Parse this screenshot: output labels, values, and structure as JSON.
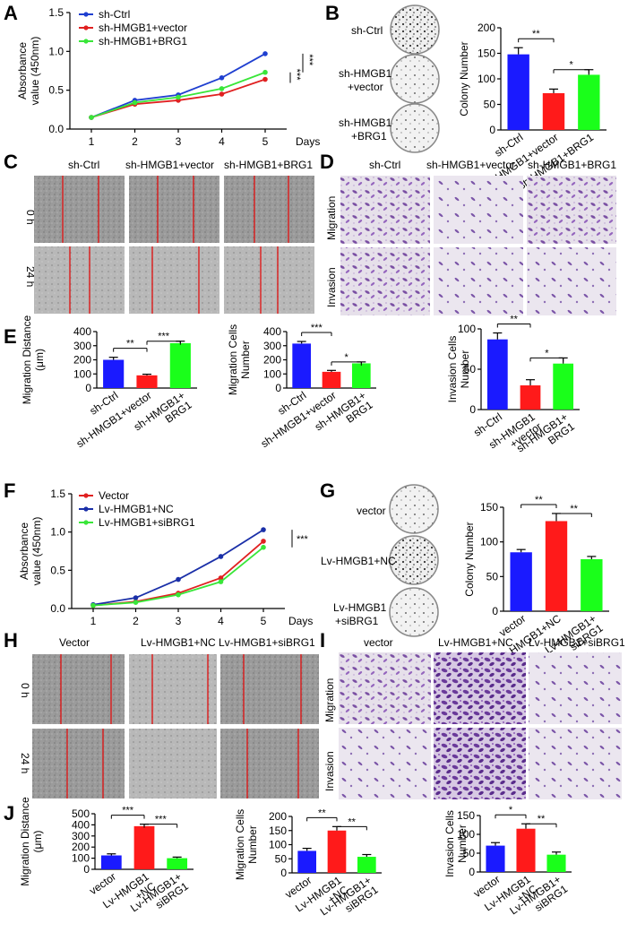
{
  "figure": {
    "panels": {
      "A": "A",
      "B": "B",
      "C": "C",
      "D": "D",
      "E": "E",
      "F": "F",
      "G": "G",
      "H": "H",
      "I": "I",
      "J": "J"
    },
    "days_label": "Days",
    "time_labels": [
      "0 h",
      "24 h"
    ],
    "row_labels": [
      "Migration",
      "Invasion"
    ],
    "top_conditions": [
      "sh-Ctrl",
      "sh-HMGB1+vector",
      "sh-HMGB1+BRG1"
    ],
    "bottom_conditions_H": [
      "Vector",
      "Lv-HMGB1+NC",
      "Lv-HMGB1+siBRG1"
    ],
    "bottom_conditions_I": [
      "vector",
      "Lv-HMGB1+NC",
      "Lv-HMGB1+siBRG1"
    ],
    "plate_labels_B": [
      "sh-Ctrl",
      "sh-HMGB1\n+vector",
      "sh-HMGB1\n+BRG1"
    ],
    "plate_labels_G": [
      "vector",
      "Lv-HMGB1+NC",
      "Lv-HMGB1\n+siBRG1"
    ]
  },
  "chart_data": [
    {
      "id": "A",
      "type": "line",
      "x": [
        1,
        2,
        3,
        4,
        5
      ],
      "xlabel": "Days",
      "ylabel": "Absorbance value (450nm)",
      "ylim": [
        0,
        1.5
      ],
      "yticks": [
        "0.0",
        "0.5",
        "1.0",
        "1.5"
      ],
      "series": [
        {
          "name": "sh-Ctrl",
          "color": "#1f3fd0",
          "values": [
            0.15,
            0.37,
            0.44,
            0.66,
            0.97
          ]
        },
        {
          "name": "sh-HMGB1+vector",
          "color": "#e02020",
          "values": [
            0.15,
            0.32,
            0.37,
            0.45,
            0.64
          ]
        },
        {
          "name": "sh-HMGB1+BRG1",
          "color": "#39e639",
          "values": [
            0.15,
            0.34,
            0.41,
            0.52,
            0.73
          ]
        }
      ],
      "significance": [
        "***",
        "***"
      ]
    },
    {
      "id": "B",
      "type": "bar",
      "categories": [
        "sh-Ctrl",
        "sh-HMGB1+vector",
        "sh-HMGB1+BRG1"
      ],
      "values": [
        148,
        72,
        108
      ],
      "errors": [
        13,
        8,
        10
      ],
      "colors": [
        "#1a1aff",
        "#ff1a1a",
        "#1aff1a"
      ],
      "ylabel": "Colony Number",
      "ylim": [
        0,
        200
      ],
      "yticks": [
        "0",
        "50",
        "100",
        "150",
        "200"
      ],
      "significance": [
        "**",
        "*"
      ]
    },
    {
      "id": "E1",
      "type": "bar",
      "categories": [
        "sh-Ctrl",
        "sh-HMGB1+vector",
        "sh-HMGB1+\nBRG1"
      ],
      "values": [
        200,
        90,
        318
      ],
      "errors": [
        18,
        8,
        14
      ],
      "colors": [
        "#1a1aff",
        "#ff1a1a",
        "#1aff1a"
      ],
      "ylabel": "Migration Distance (μm)",
      "ylim": [
        0,
        400
      ],
      "yticks": [
        "0",
        "100",
        "200",
        "300",
        "400"
      ],
      "significance": [
        "**",
        "***"
      ]
    },
    {
      "id": "E2",
      "type": "bar",
      "categories": [
        "sh-Ctrl",
        "sh-HMGB1+vector",
        "sh-HMGB1+\nBRG1"
      ],
      "values": [
        315,
        115,
        175
      ],
      "errors": [
        15,
        10,
        10
      ],
      "colors": [
        "#1a1aff",
        "#ff1a1a",
        "#1aff1a"
      ],
      "ylabel": "Migration Cells Number",
      "ylim": [
        0,
        400
      ],
      "yticks": [
        "0",
        "100",
        "200",
        "300",
        "400"
      ],
      "significance": [
        "***",
        "*"
      ]
    },
    {
      "id": "E3",
      "type": "bar",
      "categories": [
        "sh-Ctrl",
        "sh-HMGB1\n+vector",
        "sh-HMGB1+\nBRG1"
      ],
      "values": [
        87,
        30,
        57
      ],
      "errors": [
        8,
        7,
        7
      ],
      "colors": [
        "#1a1aff",
        "#ff1a1a",
        "#1aff1a"
      ],
      "ylabel": "Invasion Cells Number",
      "ylim": [
        0,
        100
      ],
      "yticks": [
        "0",
        "50",
        "100"
      ],
      "significance": [
        "**",
        "*"
      ]
    },
    {
      "id": "F",
      "type": "line",
      "x": [
        1,
        2,
        3,
        4,
        5
      ],
      "xlabel": "Days",
      "ylabel": "Absorbance value (450nm)",
      "ylim": [
        0,
        1.5
      ],
      "yticks": [
        "0.0",
        "0.5",
        "1.0",
        "1.5"
      ],
      "series": [
        {
          "name": "Vector",
          "color": "#e02020",
          "values": [
            0.04,
            0.09,
            0.2,
            0.4,
            0.88
          ]
        },
        {
          "name": "Lv-HMGB1+NC",
          "color": "#1a2fa8",
          "values": [
            0.05,
            0.14,
            0.38,
            0.68,
            1.03
          ]
        },
        {
          "name": "Lv-HMGB1+siBRG1",
          "color": "#39e639",
          "values": [
            0.04,
            0.08,
            0.18,
            0.35,
            0.8
          ]
        }
      ],
      "significance": [
        "***"
      ]
    },
    {
      "id": "G",
      "type": "bar",
      "categories": [
        "vector",
        "Lv-HMGB1+NC",
        "Lv-HMGB1+\nsiBRG1"
      ],
      "values": [
        85,
        130,
        75
      ],
      "errors": [
        4,
        11,
        4
      ],
      "colors": [
        "#1a1aff",
        "#ff1a1a",
        "#1aff1a"
      ],
      "ylabel": "Colony Number",
      "ylim": [
        0,
        150
      ],
      "yticks": [
        "0",
        "50",
        "100",
        "150"
      ],
      "significance": [
        "**",
        "**"
      ]
    },
    {
      "id": "J1",
      "type": "bar",
      "categories": [
        "vector",
        "Lv-HMGB1\n+NC",
        "Lv-HMGB1+\nsiBRG1"
      ],
      "values": [
        125,
        388,
        100
      ],
      "errors": [
        14,
        18,
        10
      ],
      "colors": [
        "#1a1aff",
        "#ff1a1a",
        "#1aff1a"
      ],
      "ylabel": "Migration Distance (μm)",
      "ylim": [
        0,
        500
      ],
      "yticks": [
        "0",
        "100",
        "200",
        "300",
        "400",
        "500"
      ],
      "significance": [
        "***",
        "***"
      ]
    },
    {
      "id": "J2",
      "type": "bar",
      "categories": [
        "vector",
        "Lv-HMGB1\n+NC",
        "Lv-HMGB1+\nsiBRG1"
      ],
      "values": [
        78,
        150,
        57
      ],
      "errors": [
        9,
        14,
        8
      ],
      "colors": [
        "#1a1aff",
        "#ff1a1a",
        "#1aff1a"
      ],
      "ylabel": "Migration Cells Number",
      "ylim": [
        0,
        200
      ],
      "yticks": [
        "0",
        "50",
        "100",
        "150",
        "200"
      ],
      "significance": [
        "**",
        "**"
      ]
    },
    {
      "id": "J3",
      "type": "bar",
      "categories": [
        "vector",
        "Lv-HMGB1\n+NC",
        "Lv-HMGB1+\nsiBRG1"
      ],
      "values": [
        70,
        115,
        46
      ],
      "errors": [
        8,
        13,
        7
      ],
      "colors": [
        "#1a1aff",
        "#ff1a1a",
        "#1aff1a"
      ],
      "ylabel": "Invasion Cells Number",
      "ylim": [
        0,
        150
      ],
      "yticks": [
        "0",
        "50",
        "100",
        "150"
      ],
      "significance": [
        "*",
        "**"
      ]
    }
  ]
}
